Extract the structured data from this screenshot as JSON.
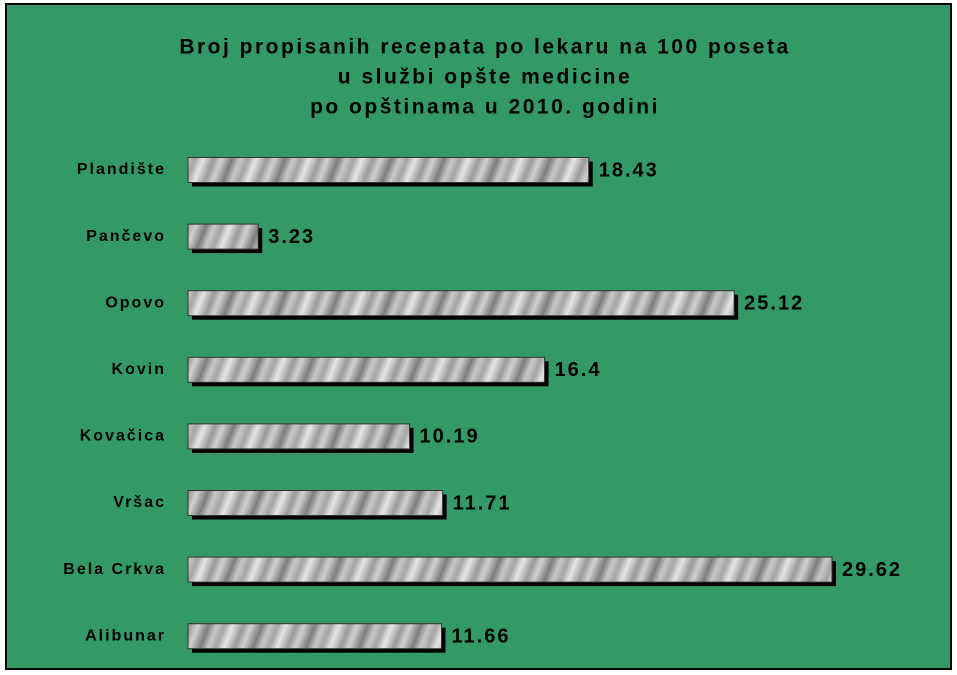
{
  "chart_data": {
    "type": "bar",
    "orientation": "horizontal",
    "title": [
      "Broj propisanih recepata po lekaru na 100 poseta",
      "u službi opšte medicine",
      "po opštinama u 2010. godini"
    ],
    "categories": [
      "Plandište",
      "Pančevo",
      "Opovo",
      "Kovin",
      "Kovačica",
      "Vršac",
      "Bela Crkva",
      "Alibunar"
    ],
    "values": [
      18.43,
      3.23,
      25.12,
      16.4,
      10.19,
      11.71,
      29.62,
      11.66
    ],
    "background": "#339966",
    "color": "#b0b0b0",
    "grid": false
  }
}
